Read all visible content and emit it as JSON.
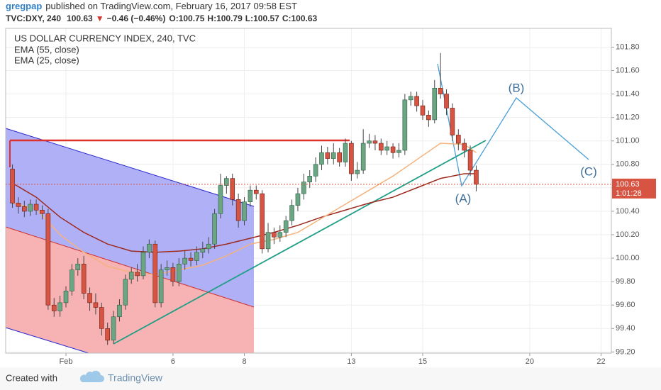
{
  "header": {
    "author": "gregpap",
    "published": "published on TradingView.com, February 16, 2017 09:58 EST",
    "symbol": "TVC:DXY, 240",
    "last": "100.63",
    "direction": "▼",
    "change": "−0.46 (−0.46%)",
    "ohlc": [
      {
        "label": "O:",
        "value": "100.75"
      },
      {
        "label": "H:",
        "value": "100.79"
      },
      {
        "label": "L:",
        "value": "100.57"
      },
      {
        "label": "C:",
        "value": "100.63"
      }
    ]
  },
  "chart_data": {
    "type": "candlestick",
    "title": "US DOLLAR CURRENCY INDEX, 240, TVC",
    "x": [
      -9,
      -8,
      -7,
      -6,
      -5,
      -4,
      -3,
      -2,
      -1,
      0,
      1,
      2,
      3,
      4,
      5,
      6,
      7,
      8,
      9,
      10,
      11,
      12,
      13,
      14,
      15,
      16,
      17,
      18,
      19,
      20,
      21,
      22,
      23,
      24,
      25,
      26,
      27,
      28,
      29,
      30,
      31,
      32,
      33,
      34,
      35,
      36,
      37,
      38,
      39,
      40,
      41,
      42,
      43,
      44,
      45,
      46,
      47,
      48,
      49,
      50,
      51,
      52,
      53,
      54,
      55,
      56,
      57,
      58,
      59,
      60,
      61,
      62,
      63,
      64,
      65,
      66,
      67,
      68,
      69
    ],
    "open": [
      100.76,
      100.47,
      100.44,
      100.4,
      100.46,
      100.41,
      100.38,
      99.6,
      99.55,
      99.62,
      99.72,
      99.9,
      99.95,
      99.7,
      99.62,
      99.58,
      99.4,
      99.3,
      99.5,
      99.6,
      99.82,
      99.88,
      99.85,
      100.05,
      100.12,
      99.62,
      99.9,
      99.92,
      99.8,
      99.95,
      100.0,
      99.98,
      100.05,
      100.08,
      100.12,
      100.38,
      100.62,
      100.68,
      100.5,
      100.32,
      100.48,
      100.58,
      100.55,
      100.08,
      100.22,
      100.18,
      100.22,
      100.32,
      100.45,
      100.55,
      100.65,
      100.7,
      100.8,
      100.9,
      100.85,
      100.9,
      100.82,
      100.98,
      100.72,
      100.75,
      100.98,
      101.0,
      100.98,
      100.92,
      100.95,
      100.9,
      100.92,
      101.35,
      101.38,
      101.3,
      101.22,
      101.18,
      101.45,
      101.4,
      101.28,
      101.05,
      100.98,
      100.92,
      100.75
    ],
    "high": [
      100.8,
      100.52,
      100.49,
      100.5,
      100.5,
      100.45,
      100.42,
      99.66,
      99.68,
      99.76,
      99.95,
      100.0,
      100.02,
      99.75,
      99.7,
      99.62,
      99.45,
      99.55,
      99.65,
      99.86,
      99.92,
      99.95,
      100.1,
      100.16,
      100.15,
      99.95,
      99.98,
      99.96,
      100.0,
      100.06,
      100.05,
      100.1,
      100.14,
      100.18,
      100.42,
      100.72,
      100.7,
      100.72,
      100.55,
      100.52,
      100.62,
      100.62,
      100.58,
      100.3,
      100.26,
      100.28,
      100.36,
      100.5,
      100.6,
      100.72,
      100.75,
      100.86,
      100.96,
      100.95,
      100.98,
      100.94,
      101.02,
      101.0,
      100.82,
      101.1,
      101.06,
      101.05,
      101.02,
      101.0,
      100.98,
      100.98,
      101.4,
      101.42,
      101.42,
      101.35,
      101.26,
      101.52,
      101.75,
      101.44,
      101.32,
      101.1,
      101.02,
      100.96,
      100.79
    ],
    "low": [
      100.43,
      100.38,
      100.35,
      100.36,
      100.37,
      100.33,
      99.56,
      99.5,
      99.5,
      99.58,
      99.68,
      99.85,
      99.65,
      99.55,
      99.52,
      99.34,
      99.26,
      99.27,
      99.46,
      99.56,
      99.78,
      99.8,
      99.82,
      100.0,
      99.58,
      99.58,
      99.85,
      99.76,
      99.76,
      99.9,
      99.93,
      99.94,
      100.0,
      100.04,
      100.08,
      100.34,
      100.55,
      100.45,
      100.26,
      100.28,
      100.44,
      100.5,
      100.04,
      100.05,
      100.12,
      100.14,
      100.18,
      100.28,
      100.4,
      100.5,
      100.6,
      100.65,
      100.75,
      100.8,
      100.8,
      100.78,
      100.78,
      100.66,
      100.68,
      100.72,
      100.94,
      100.92,
      100.88,
      100.88,
      100.85,
      100.86,
      100.88,
      101.3,
      101.25,
      101.18,
      101.12,
      101.15,
      101.36,
      101.22,
      101.0,
      100.92,
      100.86,
      100.7,
      100.57
    ],
    "close": [
      100.47,
      100.44,
      100.4,
      100.46,
      100.41,
      100.38,
      99.6,
      99.55,
      99.62,
      99.72,
      99.9,
      99.95,
      99.7,
      99.62,
      99.58,
      99.4,
      99.3,
      99.5,
      99.6,
      99.82,
      99.88,
      99.85,
      100.05,
      100.12,
      99.62,
      99.9,
      99.92,
      99.8,
      99.95,
      100.0,
      99.98,
      100.05,
      100.08,
      100.12,
      100.38,
      100.62,
      100.68,
      100.5,
      100.32,
      100.48,
      100.58,
      100.55,
      100.08,
      100.22,
      100.18,
      100.22,
      100.32,
      100.45,
      100.55,
      100.65,
      100.7,
      100.8,
      100.9,
      100.85,
      100.9,
      100.82,
      100.98,
      100.72,
      100.75,
      100.98,
      101.0,
      100.98,
      100.92,
      100.95,
      100.9,
      100.92,
      101.35,
      101.38,
      101.3,
      101.22,
      101.18,
      101.45,
      101.4,
      101.28,
      101.05,
      100.98,
      100.92,
      100.75,
      100.63
    ],
    "up_color": "#6ba583",
    "down_color": "#d75442",
    "overlays": [
      {
        "name": "EMA (55, close)",
        "color": "#9c2a1f",
        "x": [
          -9,
          -5,
          -1,
          3,
          7,
          11,
          15,
          19,
          23,
          27,
          31,
          35,
          39,
          43,
          47,
          51,
          55,
          59,
          63,
          67,
          69
        ],
        "values": [
          100.64,
          100.52,
          100.35,
          100.22,
          100.12,
          100.06,
          100.05,
          100.06,
          100.08,
          100.12,
          100.17,
          100.22,
          100.28,
          100.35,
          100.41,
          100.47,
          100.52,
          100.6,
          100.68,
          100.72,
          100.72
        ]
      },
      {
        "name": "EMA (25, close)",
        "color": "#f4b27c",
        "x": [
          -9,
          -5,
          -1,
          3,
          7,
          11,
          15,
          19,
          23,
          27,
          31,
          35,
          39,
          43,
          47,
          51,
          55,
          59,
          63,
          67,
          69
        ],
        "values": [
          100.47,
          100.42,
          100.2,
          100.05,
          99.93,
          99.88,
          99.86,
          99.9,
          99.94,
          100.02,
          100.12,
          100.16,
          100.22,
          100.34,
          100.46,
          100.58,
          100.7,
          100.84,
          100.98,
          100.97,
          100.9
        ]
      }
    ],
    "xlim": [
      -10.14,
      91.73
    ],
    "xticks": [
      {
        "value": 0,
        "label": "Feb"
      },
      {
        "value": 18,
        "label": "6"
      },
      {
        "value": 30,
        "label": "8"
      },
      {
        "value": 48,
        "label": "13"
      },
      {
        "value": 60,
        "label": "15"
      },
      {
        "value": 78,
        "label": "20"
      },
      {
        "value": 90,
        "label": "22"
      }
    ],
    "ylim": [
      99.19,
      101.96
    ],
    "yticks": [
      {
        "value": 99.2,
        "label": "99.20"
      },
      {
        "value": 99.4,
        "label": "99.40"
      },
      {
        "value": 99.6,
        "label": "99.60"
      },
      {
        "value": 99.8,
        "label": "99.80"
      },
      {
        "value": 100.0,
        "label": "100.00"
      },
      {
        "value": 100.2,
        "label": "100.20"
      },
      {
        "value": 100.4,
        "label": "100.40"
      },
      {
        "value": 100.6,
        "label": "100.60"
      },
      {
        "value": 100.8,
        "label": "100.80"
      },
      {
        "value": 101.0,
        "label": "101.00"
      },
      {
        "value": 101.2,
        "label": "101.20"
      },
      {
        "value": 101.4,
        "label": "101.40"
      },
      {
        "value": 101.6,
        "label": "101.60"
      },
      {
        "value": 101.8,
        "label": "101.80"
      }
    ],
    "grid": true,
    "last_price": 100.63,
    "countdown": "1:01:28",
    "annotations": [
      "(A)",
      "(B)",
      "(C)"
    ]
  },
  "footer": {
    "text": "Created with",
    "brand": "TradingView"
  }
}
